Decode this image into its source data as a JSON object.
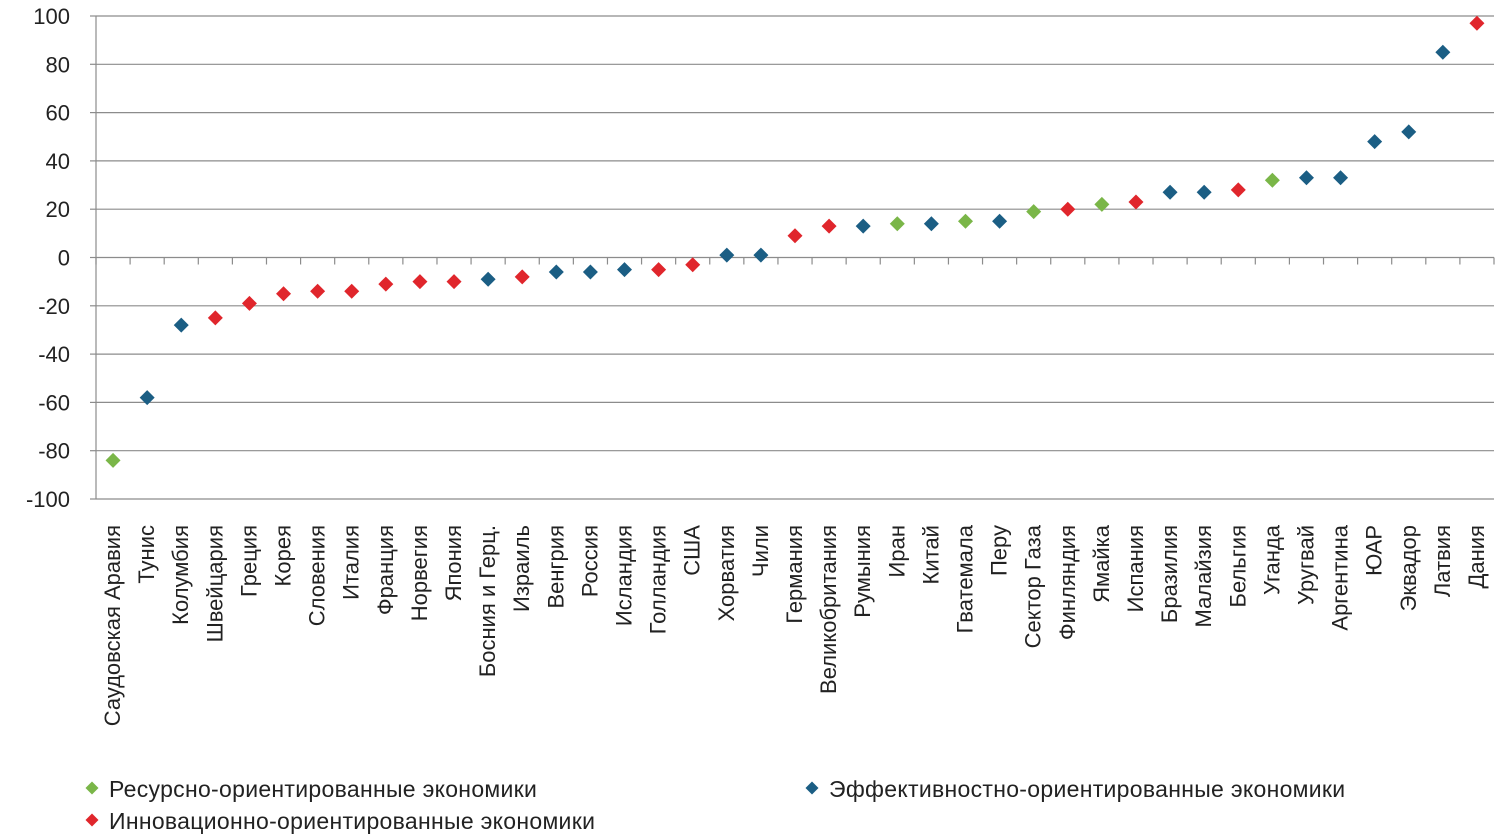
{
  "chart_data": {
    "type": "scatter",
    "title": "",
    "xlabel": "",
    "ylabel": "",
    "ylim": [
      -100,
      100
    ],
    "yticks": [
      100,
      80,
      60,
      40,
      20,
      0,
      -20,
      -40,
      -60,
      -80,
      -100
    ],
    "grid": "horizontal",
    "legend_position": "bottom",
    "series": [
      {
        "name": "Ресурсно-ориентированные экономики",
        "color": "#7ab648",
        "key": "resource"
      },
      {
        "name": "Эффективностно-ориентированные экономики",
        "color": "#1b5e84",
        "key": "efficiency"
      },
      {
        "name": "Инновационно-ориентированные экономики",
        "color": "#e0262c",
        "key": "innovation"
      }
    ],
    "points": [
      {
        "label": "Саудовская Аравия",
        "y": -84,
        "series": "resource"
      },
      {
        "label": "Тунис",
        "y": -58,
        "series": "efficiency"
      },
      {
        "label": "Колумбия",
        "y": -28,
        "series": "efficiency"
      },
      {
        "label": "Швейцария",
        "y": -25,
        "series": "innovation"
      },
      {
        "label": "Греция",
        "y": -19,
        "series": "innovation"
      },
      {
        "label": "Корея",
        "y": -15,
        "series": "innovation"
      },
      {
        "label": "Словения",
        "y": -14,
        "series": "innovation"
      },
      {
        "label": "Италия",
        "y": -14,
        "series": "innovation"
      },
      {
        "label": "Франция",
        "y": -11,
        "series": "innovation"
      },
      {
        "label": "Норвегия",
        "y": -10,
        "series": "innovation"
      },
      {
        "label": "Япония",
        "y": -10,
        "series": "innovation"
      },
      {
        "label": "Босния и Герц.",
        "y": -9,
        "series": "efficiency"
      },
      {
        "label": "Израиль",
        "y": -8,
        "series": "innovation"
      },
      {
        "label": "Венгрия",
        "y": -6,
        "series": "efficiency"
      },
      {
        "label": "Россия",
        "y": -6,
        "series": "efficiency"
      },
      {
        "label": "Исландия",
        "y": -5,
        "series": "efficiency"
      },
      {
        "label": "Голландия",
        "y": -5,
        "series": "innovation"
      },
      {
        "label": "США",
        "y": -3,
        "series": "innovation"
      },
      {
        "label": "Хорватия",
        "y": 1,
        "series": "efficiency"
      },
      {
        "label": "Чили",
        "y": 1,
        "series": "efficiency"
      },
      {
        "label": "Германия",
        "y": 9,
        "series": "innovation"
      },
      {
        "label": "Великобритания",
        "y": 13,
        "series": "innovation"
      },
      {
        "label": "Румыния",
        "y": 13,
        "series": "efficiency"
      },
      {
        "label": "Иран",
        "y": 14,
        "series": "resource"
      },
      {
        "label": "Китай",
        "y": 14,
        "series": "efficiency"
      },
      {
        "label": "Гватемала",
        "y": 15,
        "series": "resource"
      },
      {
        "label": "Перу",
        "y": 15,
        "series": "efficiency"
      },
      {
        "label": "Сектор Газа",
        "y": 19,
        "series": "resource"
      },
      {
        "label": "Финляндия",
        "y": 20,
        "series": "innovation"
      },
      {
        "label": "Ямайка",
        "y": 22,
        "series": "resource"
      },
      {
        "label": "Испания",
        "y": 23,
        "series": "innovation"
      },
      {
        "label": "Бразилия",
        "y": 27,
        "series": "efficiency"
      },
      {
        "label": "Малайзия",
        "y": 27,
        "series": "efficiency"
      },
      {
        "label": "Бельгия",
        "y": 28,
        "series": "innovation"
      },
      {
        "label": "Уганда",
        "y": 32,
        "series": "resource"
      },
      {
        "label": "Уругвай",
        "y": 33,
        "series": "efficiency"
      },
      {
        "label": "Аргентина",
        "y": 33,
        "series": "efficiency"
      },
      {
        "label": "ЮАР",
        "y": 48,
        "series": "efficiency"
      },
      {
        "label": "Эквадор",
        "y": 52,
        "series": "efficiency"
      },
      {
        "label": "Латвия",
        "y": 85,
        "series": "efficiency"
      },
      {
        "label": "Дания",
        "y": 97,
        "series": "innovation"
      }
    ]
  }
}
